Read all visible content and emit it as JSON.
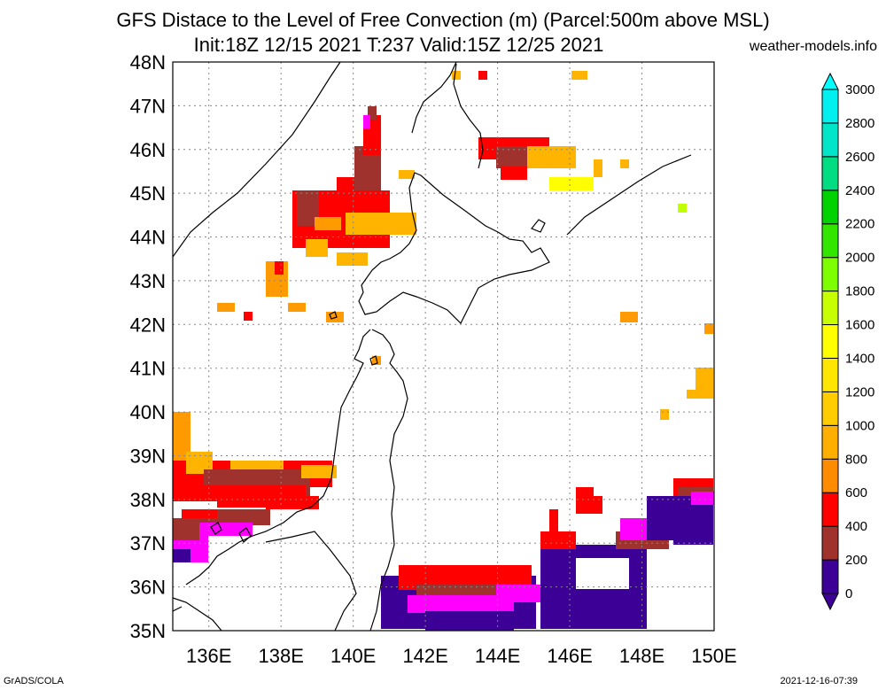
{
  "title_line1": "GFS Distace to the Level of Free Convection (m) (Parcel:500m above MSL)",
  "title_line2": "Init:18Z 12/15 2021 T:237 Valid:15Z 12/25 2021",
  "site": "weather-models.info",
  "footer_left": "GrADS/COLA",
  "footer_right": "2021-12-16-07:39",
  "map": {
    "lon_range": [
      135,
      150
    ],
    "lat_range": [
      35,
      48
    ],
    "lon_labels": [
      "136E",
      "138E",
      "140E",
      "142E",
      "144E",
      "146E",
      "148E",
      "150E"
    ],
    "lat_labels": [
      "35N",
      "36N",
      "37N",
      "38N",
      "39N",
      "40N",
      "41N",
      "42N",
      "43N",
      "44N",
      "45N",
      "46N",
      "47N",
      "48N"
    ]
  },
  "colorbar": {
    "labels": [
      "0",
      "200",
      "400",
      "600",
      "800",
      "1000",
      "1200",
      "1400",
      "1600",
      "1800",
      "2000",
      "2200",
      "2400",
      "2600",
      "2800",
      "3000"
    ],
    "colors": [
      "#3c0096",
      "#ff00ff",
      "#a0322d",
      "#ff0000",
      "#ff8c00",
      "#ffaf00",
      "#ffcc00",
      "#ffe600",
      "#ffff00",
      "#c8ff00",
      "#7dff00",
      "#32e600",
      "#00d200",
      "#00dc82",
      "#00e6c8",
      "#00f0f0",
      "#00ffff"
    ]
  },
  "field_colors": {
    "purple": "#3c0096",
    "magenta": "#ff00ff",
    "brown": "#a0322d",
    "red": "#ff0000",
    "orange": "#ff9b00",
    "amber": "#ffb400",
    "yellow": "#ffff00",
    "yellowgreen": "#bfff00"
  }
}
